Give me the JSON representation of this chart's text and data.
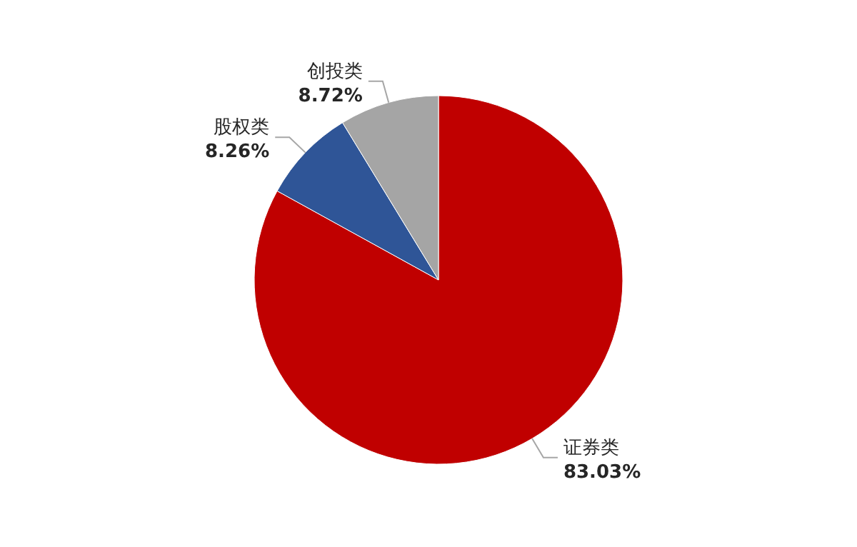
{
  "chart_data": {
    "type": "pie",
    "categories": [
      "证券类",
      "股权类",
      "创投类"
    ],
    "values": [
      83.03,
      8.26,
      8.72
    ],
    "colors": [
      "#c00000",
      "#2f5597",
      "#a5a5a5"
    ],
    "value_labels": [
      "83.03%",
      "8.26%",
      "8.72%"
    ],
    "legend": false
  }
}
